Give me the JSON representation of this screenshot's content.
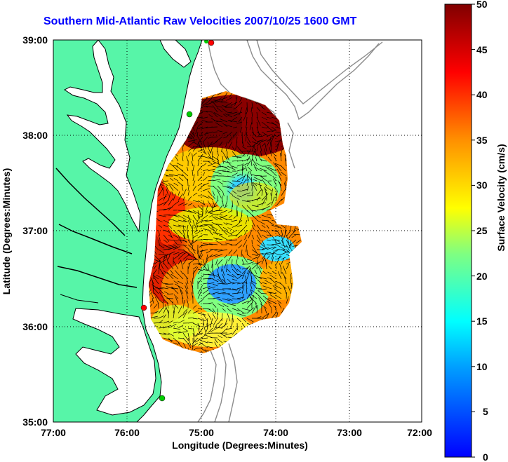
{
  "title": "Southern Mid-Atlantic Raw Velocities 2007/10/25 1600 GMT",
  "x_axis": {
    "label": "Longitude (Degrees:Minutes)",
    "ticks": [
      "77:00",
      "76:00",
      "75:00",
      "74:00",
      "73:00",
      "72:00"
    ]
  },
  "y_axis": {
    "label": "Latitude (Degrees:Minutes)",
    "ticks": [
      "39:00",
      "38:00",
      "37:00",
      "36:00",
      "35:00"
    ]
  },
  "colorbar": {
    "label": "Surface Velocity (cm/s)",
    "ticks": [
      "50",
      "45",
      "40",
      "35",
      "30",
      "25",
      "20",
      "15",
      "10",
      "5",
      "0"
    ],
    "range": [
      0,
      50
    ]
  },
  "colors": {
    "land": "#57f5a8",
    "water": "#ffffff",
    "coast": "#000000",
    "title": "#0000ff",
    "bathymetry": "#8c8c8c",
    "station": "#ff0000",
    "station_alt": "#00cc00"
  },
  "grid": true
}
